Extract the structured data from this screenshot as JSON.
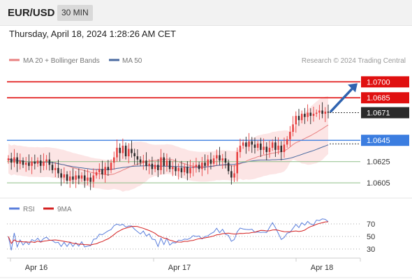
{
  "header": {
    "symbol": "EUR/USD",
    "timeframe": "30 MIN"
  },
  "datetime": "Thursday, April 18, 2024 1:28:26 AM CET",
  "legend": {
    "ma20": "MA 20 + Bollinger Bands",
    "ma50": "MA 50",
    "rsi": "RSI",
    "ma9": "9MA"
  },
  "credit": "Research © 2024 Trading Central",
  "colors": {
    "resistance": "#e01010",
    "support_blue": "#3b7de0",
    "support_green": "#8fbf88",
    "ma20": "#e88080",
    "ma50": "#4a6aa0",
    "bands_fill": "#fbdada",
    "candle_up": "#e84040",
    "candle_down": "#2b2b2b",
    "arrow": "#2f63b0",
    "rsi": "#5b7fdc",
    "ma9": "#d42020"
  },
  "chart_data": [
    {
      "type": "candlestick",
      "price_min": 1.0592,
      "price_max": 1.0714,
      "x_ticks": [
        "Apr 16",
        "Apr 17",
        "Apr 18"
      ],
      "current_price": "1.0671",
      "levels": [
        {
          "label": "1.0700",
          "value": 1.07,
          "kind": "resistance",
          "badge": true
        },
        {
          "label": "1.0685",
          "value": 1.0685,
          "kind": "resistance",
          "badge": true
        },
        {
          "label": "1.0645",
          "value": 1.0645,
          "kind": "support",
          "badge": true
        },
        {
          "label": "1.0625",
          "value": 1.0625,
          "kind": "support_minor",
          "badge": false
        },
        {
          "label": "1.0605",
          "value": 1.0605,
          "kind": "support_minor",
          "badge": false
        }
      ],
      "candles_close": [
        1.0628,
        1.0624,
        1.0629,
        1.0623,
        1.0626,
        1.0622,
        1.0624,
        1.0621,
        1.0625,
        1.0623,
        1.0626,
        1.0621,
        1.0625,
        1.0627,
        1.0622,
        1.0617,
        1.0619,
        1.0614,
        1.061,
        1.0613,
        1.0607,
        1.0611,
        1.0608,
        1.0612,
        1.0609,
        1.0612,
        1.0607,
        1.061,
        1.0606,
        1.0612,
        1.0615,
        1.0618,
        1.0613,
        1.062,
        1.0617,
        1.0624,
        1.0629,
        1.0638,
        1.0633,
        1.064,
        1.063,
        1.0637,
        1.0633,
        1.063,
        1.0627,
        1.0624,
        1.0626,
        1.0621,
        1.0623,
        1.0618,
        1.0622,
        1.0617,
        1.0629,
        1.0621,
        1.0626,
        1.0618,
        1.062,
        1.0616,
        1.0619,
        1.0615,
        1.062,
        1.0614,
        1.0619,
        1.062,
        1.0622,
        1.0618,
        1.0624,
        1.0621,
        1.0627,
        1.0623,
        1.0628,
        1.0631,
        1.0626,
        1.0628,
        1.0624,
        1.0616,
        1.061,
        1.0614,
        1.0634,
        1.064,
        1.0643,
        1.0639,
        1.0644,
        1.0641,
        1.0638,
        1.0642,
        1.0636,
        1.0639,
        1.0634,
        1.0638,
        1.0643,
        1.0636,
        1.064,
        1.0634,
        1.0641,
        1.0646,
        1.0653,
        1.066,
        1.0668,
        1.0664,
        1.067,
        1.0667,
        1.0671,
        1.0668,
        1.067,
        1.0671,
        1.0673,
        1.067,
        1.0672,
        1.0671
      ],
      "rsi": {
        "type": "line",
        "levels": [
          70,
          50,
          30
        ]
      }
    }
  ]
}
